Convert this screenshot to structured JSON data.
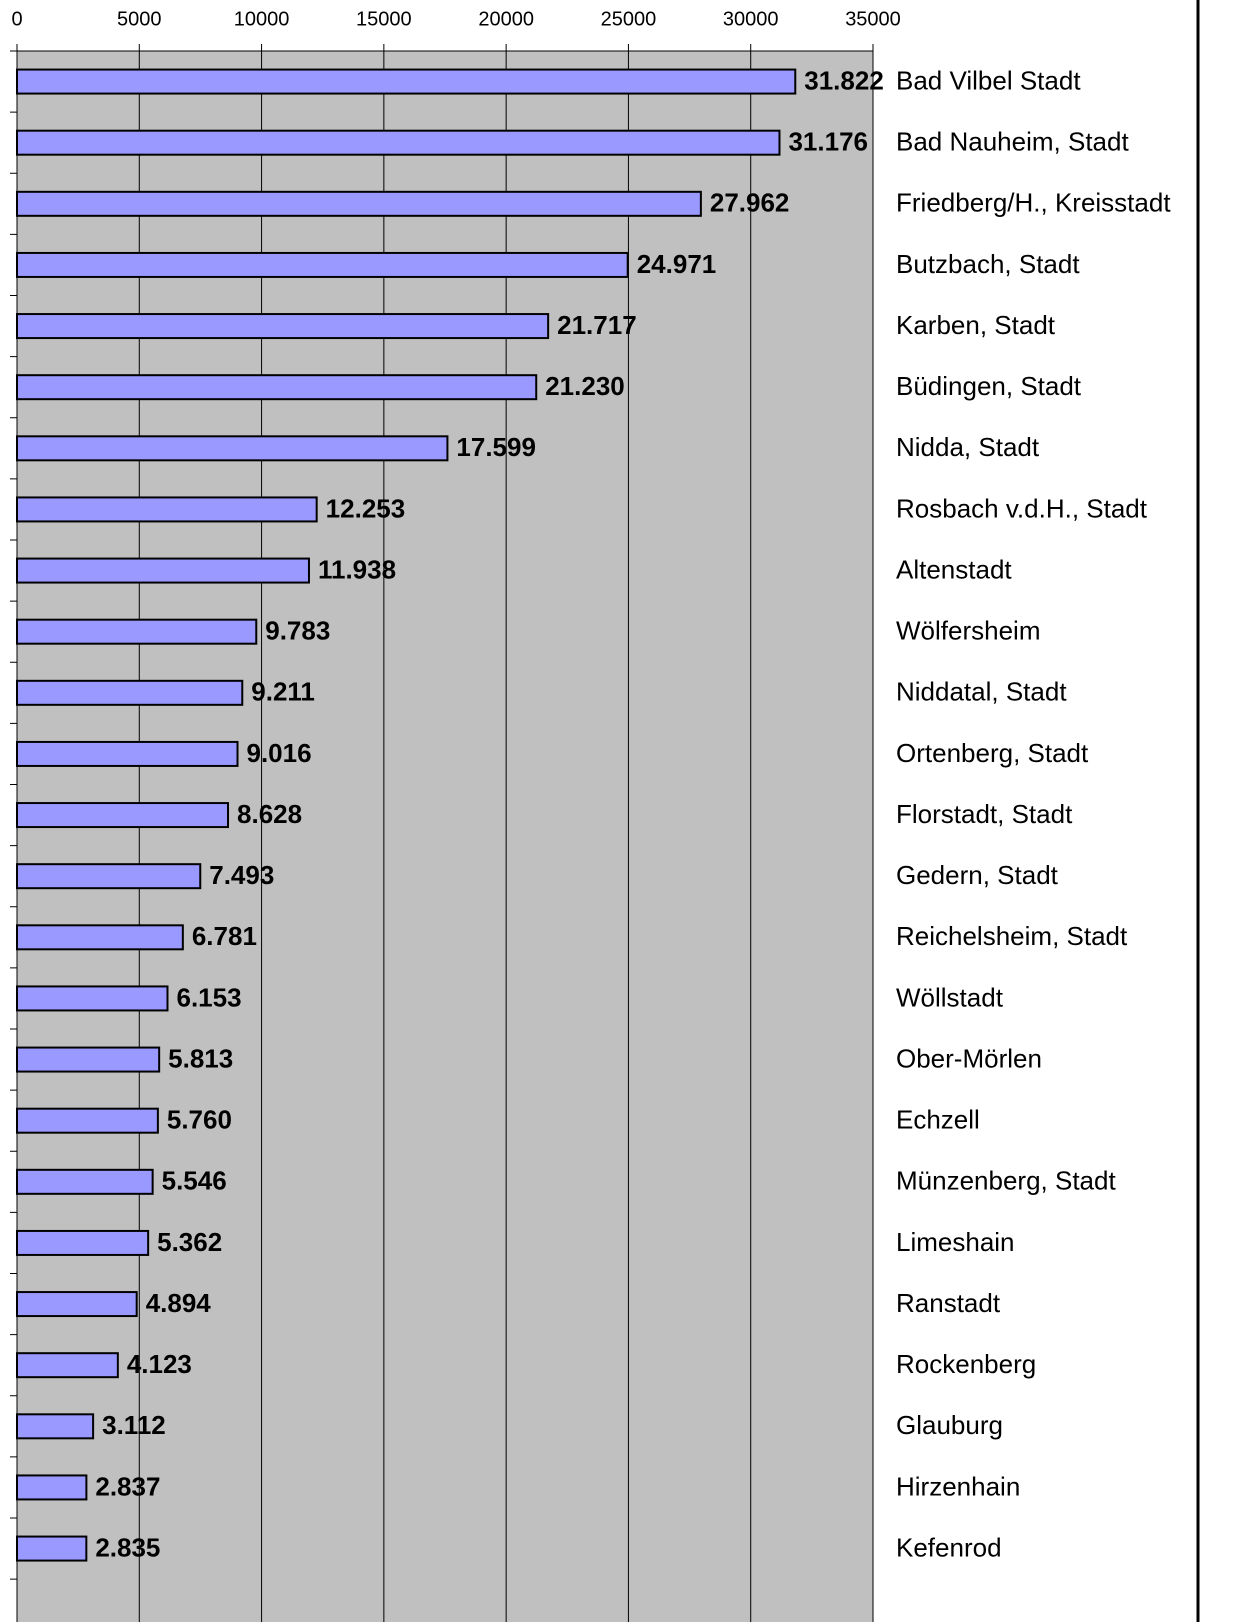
{
  "chart_data": {
    "type": "barh",
    "categories": [
      "Bad Vilbel Stadt",
      "Bad Nauheim, Stadt",
      "Friedberg/H., Kreisstadt",
      "Butzbach, Stadt",
      "Karben, Stadt",
      "Büdingen, Stadt",
      "Nidda, Stadt",
      "Rosbach v.d.H., Stadt",
      "Altenstadt",
      "Wölfersheim",
      "Niddatal, Stadt",
      "Ortenberg, Stadt",
      "Florstadt, Stadt",
      "Gedern, Stadt",
      "Reichelsheim, Stadt",
      "Wöllstadt",
      "Ober-Mörlen",
      "Echzell",
      "Münzenberg, Stadt",
      "Limeshain",
      "Ranstadt",
      "Rockenberg",
      "Glauburg",
      "Hirzenhain",
      "Kefenrod"
    ],
    "values": [
      31822,
      31176,
      27962,
      24971,
      21717,
      21230,
      17599,
      12253,
      11938,
      9783,
      9211,
      9016,
      8628,
      7493,
      6781,
      6153,
      5813,
      5760,
      5546,
      5362,
      4894,
      4123,
      3112,
      2837,
      2835
    ],
    "value_labels": [
      "31.822",
      "31.176",
      "27.962",
      "24.971",
      "21.717",
      "21.230",
      "17.599",
      "12.253",
      "11.938",
      "9.783",
      "9.211",
      "9.016",
      "8.628",
      "7.493",
      "6.781",
      "6.153",
      "5.813",
      "5.760",
      "5.546",
      "5.362",
      "4.894",
      "4.123",
      "3.112",
      "2.837",
      "2.835"
    ],
    "color": "#9999ff",
    "xlim": [
      0,
      35000
    ],
    "xticks": [
      0,
      5000,
      10000,
      15000,
      20000,
      25000,
      30000,
      35000
    ],
    "grid": true
  }
}
